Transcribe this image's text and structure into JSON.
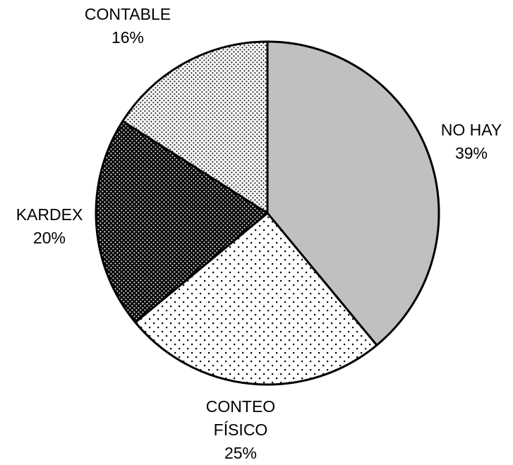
{
  "chart_data": {
    "type": "pie",
    "start": "12 o'clock",
    "direction": "clockwise",
    "slices": [
      {
        "name": "NO HAY",
        "value": 39,
        "label_lines": [
          "NO HAY"
        ],
        "pct_label": "39%",
        "fill": "#c0c0c0",
        "pattern": "solid"
      },
      {
        "name": "CONTEO FÍSICO",
        "value": 25,
        "label_lines": [
          "CONTEO",
          "FÍSICO"
        ],
        "pct_label": "25%",
        "fill": "#ffffff",
        "pattern": "sparse-dots"
      },
      {
        "name": "KARDEX",
        "value": 20,
        "label_lines": [
          "KARDEX"
        ],
        "pct_label": "20%",
        "fill": "#000000",
        "pattern": "dense-white-dots-on-black"
      },
      {
        "name": "CONTABLE",
        "value": 16,
        "label_lines": [
          "CONTABLE"
        ],
        "pct_label": "16%",
        "fill": "#ffffff",
        "pattern": "dense-black-dots"
      }
    ]
  }
}
